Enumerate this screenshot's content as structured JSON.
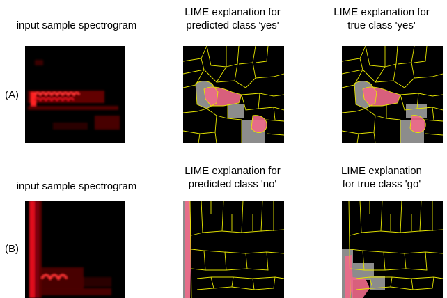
{
  "rows": [
    {
      "label": "(A)",
      "col1_title": "input sample spectrogram",
      "col2_title": [
        "LIME explanation for",
        "predicted class 'yes'"
      ],
      "col3_title": [
        "LIME explanation for",
        "true class 'yes'"
      ]
    },
    {
      "label": "(B)",
      "col1_title": "input sample spectrogram",
      "col2_title": [
        "LIME explanation for",
        "predicted class 'no'"
      ],
      "col3_title": [
        "LIME explanation",
        "for true class 'go'"
      ]
    }
  ],
  "colors": {
    "background": "#000000",
    "spectrogram": "#e0101c",
    "superpixel_boundary": "#e6e600",
    "highlight_pink": "#f06a8a",
    "highlight_gray": "#8c8c8c"
  }
}
